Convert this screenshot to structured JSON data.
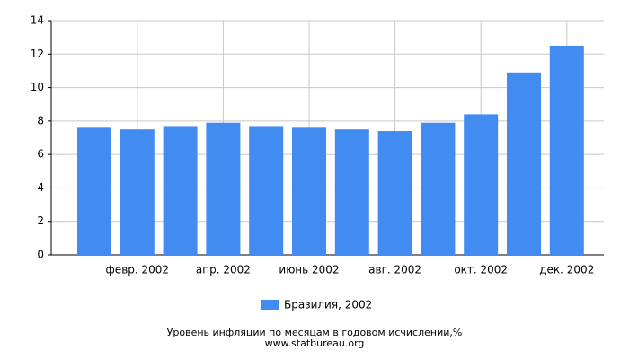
{
  "chart_data": {
    "type": "bar",
    "title": "Уровень инфляции по месяцам в годовом исчислении,%",
    "subtitle": "www.statbureau.org",
    "categories": [
      null,
      "февр. 2002",
      null,
      "апр. 2002",
      null,
      "июнь 2002",
      null,
      "авг. 2002",
      null,
      "окт. 2002",
      null,
      "дек. 2002"
    ],
    "series": [
      {
        "name": "Бразилия, 2002",
        "color": "#428bf0",
        "values": [
          7.6,
          7.5,
          7.7,
          7.9,
          7.7,
          7.6,
          7.5,
          7.4,
          7.9,
          8.4,
          10.9,
          12.5
        ]
      }
    ],
    "ylim": [
      0,
      14
    ],
    "yticks": [
      0,
      2,
      4,
      6,
      8,
      10,
      12,
      14
    ],
    "grid": true
  }
}
